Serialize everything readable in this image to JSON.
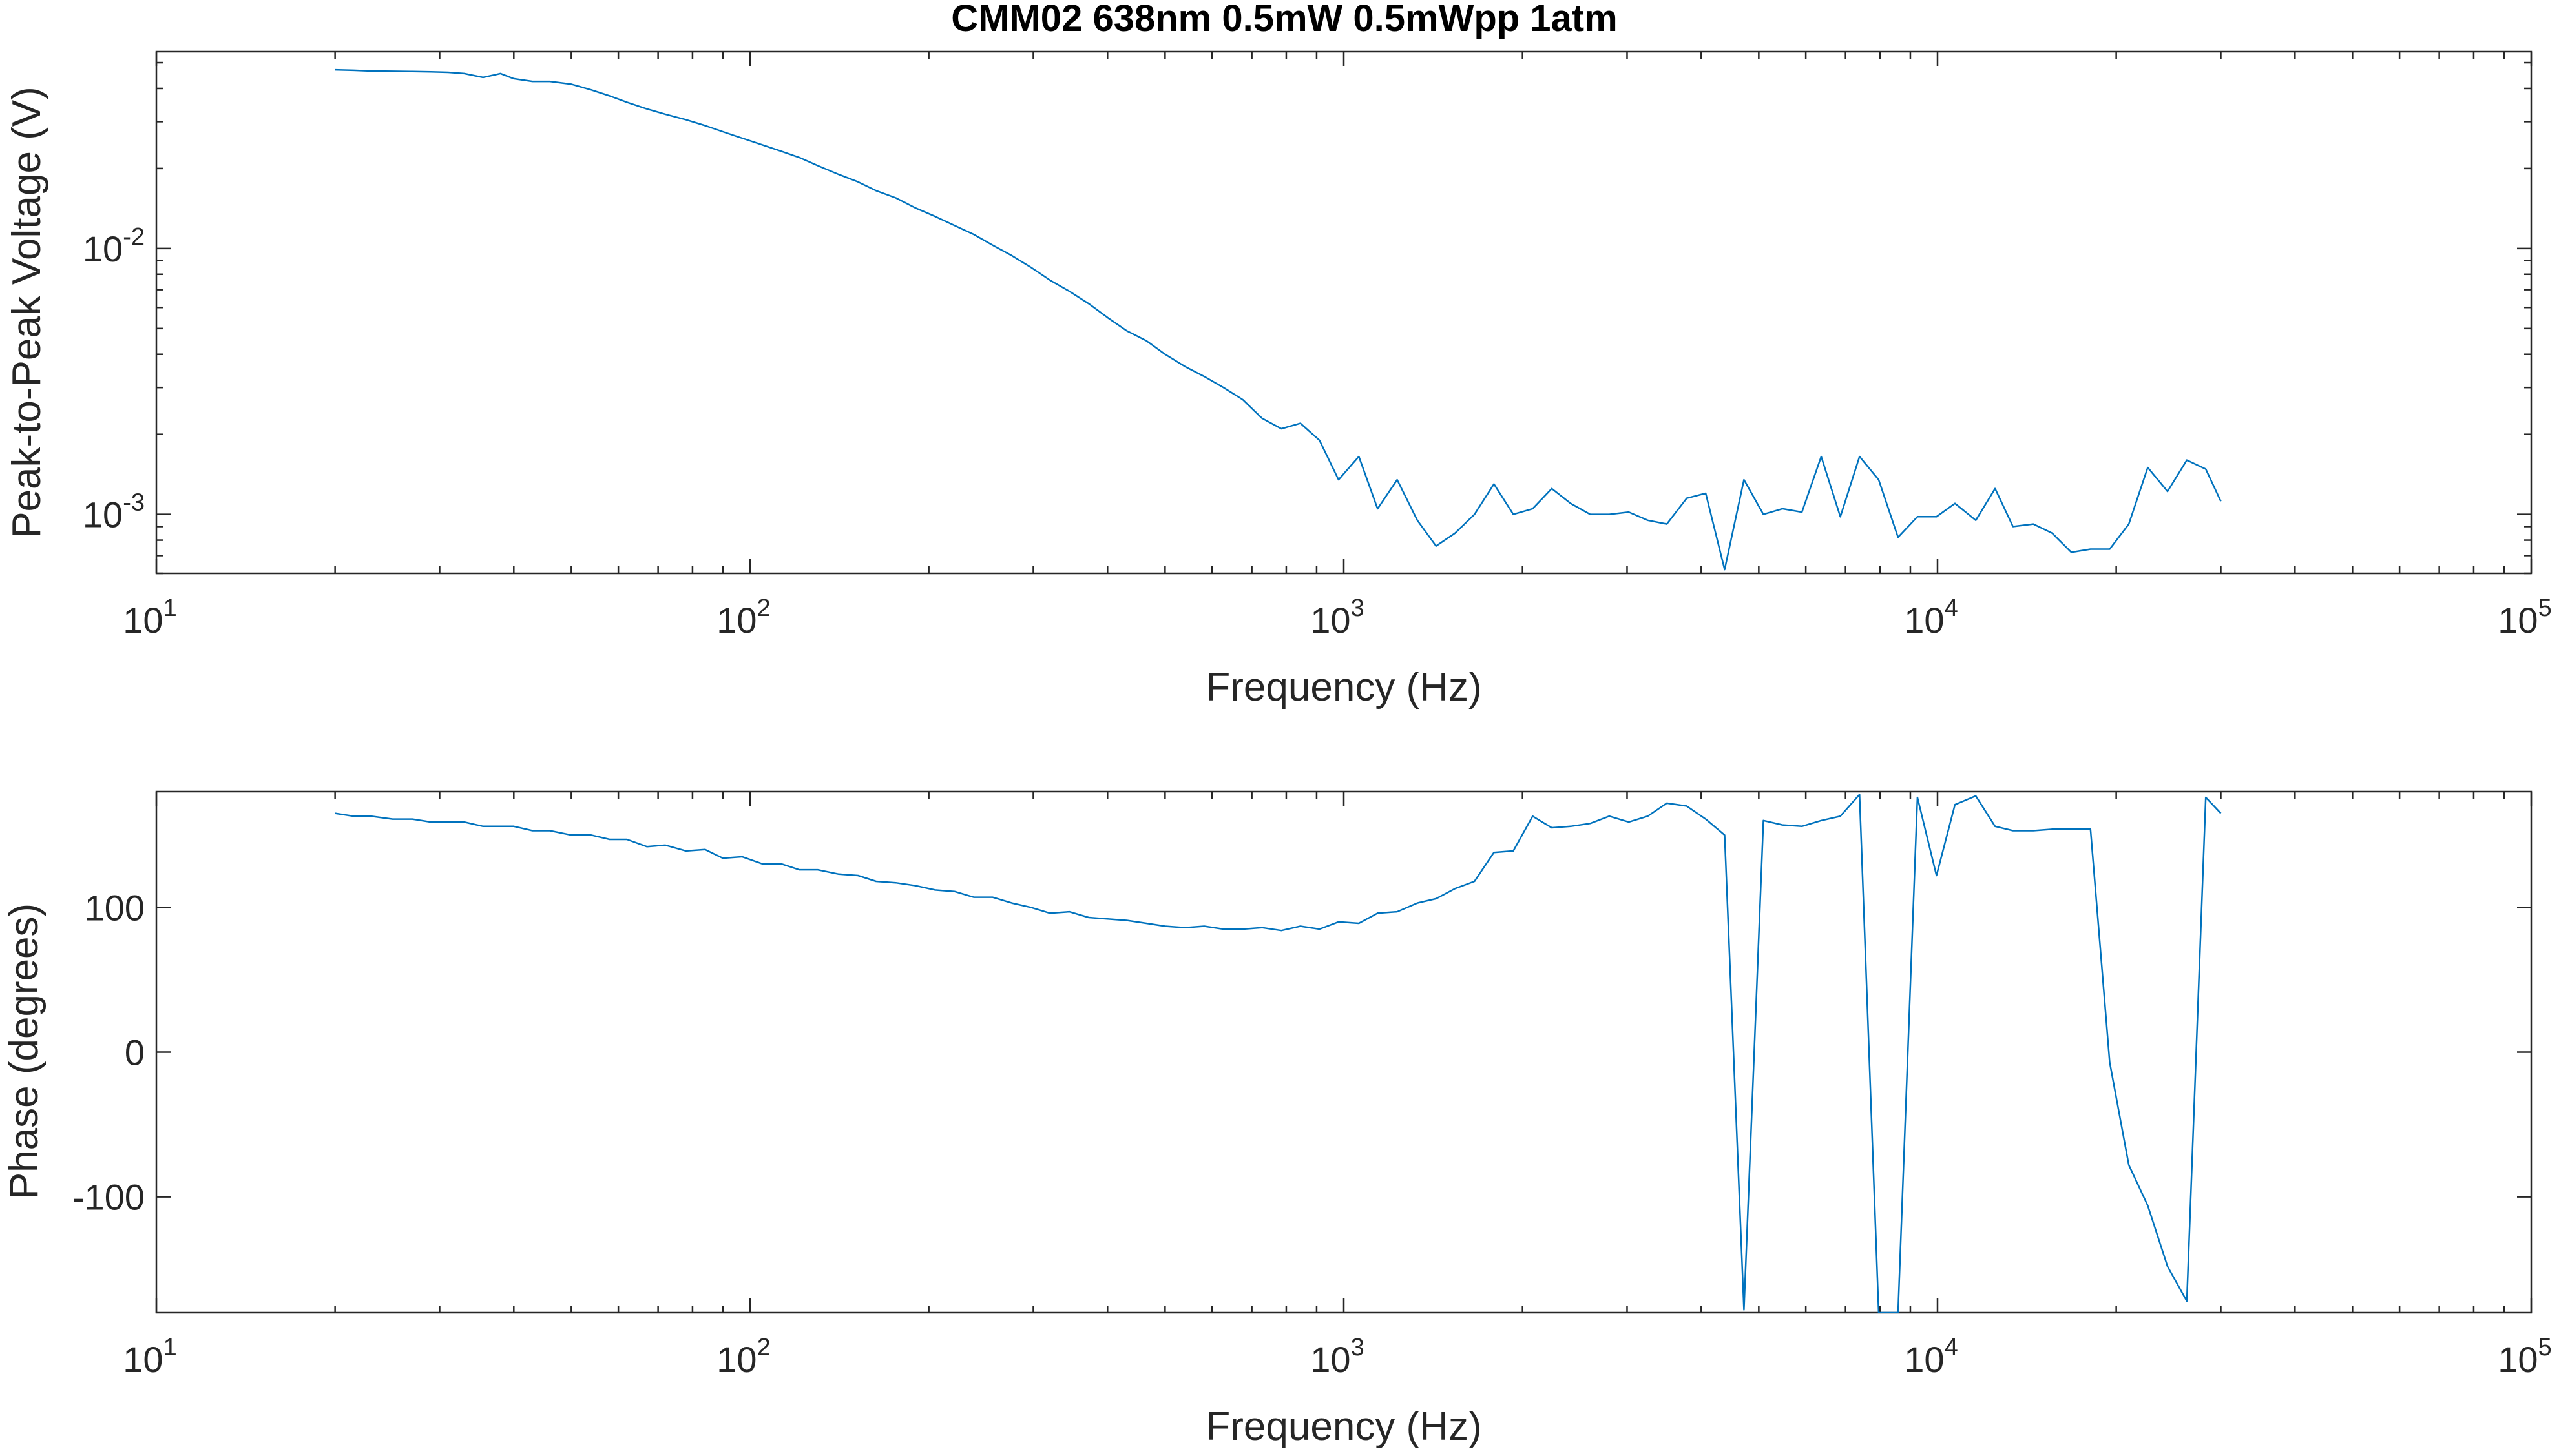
{
  "title": "CMM02 638nm 0.5mW 0.5mWpp 1atm",
  "colors": {
    "series": "#0072BD",
    "axes": "#262626"
  },
  "chart_data": [
    {
      "type": "line",
      "xlabel": "Frequency (Hz)",
      "ylabel": "Peak-to-Peak Voltage (V)",
      "xscale": "log",
      "yscale": "log",
      "xlim": [
        10,
        100000
      ],
      "ylim": [
        0.0006,
        0.055
      ],
      "xticks": [
        {
          "value": 10,
          "base": "10",
          "exp": "1"
        },
        {
          "value": 100,
          "base": "10",
          "exp": "2"
        },
        {
          "value": 1000,
          "base": "10",
          "exp": "3"
        },
        {
          "value": 10000,
          "base": "10",
          "exp": "4"
        },
        {
          "value": 100000,
          "base": "10",
          "exp": "5"
        }
      ],
      "yticks": [
        {
          "value": 0.001,
          "base": "10",
          "exp": "-3"
        },
        {
          "value": 0.01,
          "base": "10",
          "exp": "-2"
        }
      ],
      "grid": false,
      "x": [
        20,
        21.5,
        23,
        25,
        27,
        29,
        31,
        33,
        35.5,
        38,
        40,
        43,
        46,
        50,
        54,
        58,
        62,
        67,
        72,
        78,
        84,
        90,
        97,
        105,
        113,
        121,
        130,
        141,
        152,
        163,
        176,
        190,
        205,
        221,
        238,
        256,
        276,
        297,
        320,
        345,
        372,
        400,
        431,
        465,
        500,
        540,
        582,
        627,
        676,
        728,
        785,
        845,
        910,
        980,
        1060,
        1140,
        1230,
        1330,
        1430,
        1540,
        1660,
        1790,
        1930,
        2080,
        2240,
        2410,
        2600,
        2800,
        3020,
        3250,
        3500,
        3780,
        4070,
        4380,
        4720,
        5090,
        5480,
        5910,
        6370,
        6860,
        7390,
        7960,
        8580,
        9250,
        9960,
        10700,
        11600,
        12500,
        13400,
        14500,
        15600,
        16800,
        18100,
        19500,
        21000,
        22600,
        24400,
        26300,
        28300,
        30000
      ],
      "y": [
        0.047,
        0.0468,
        0.0465,
        0.0464,
        0.0463,
        0.0462,
        0.046,
        0.0455,
        0.044,
        0.0455,
        0.0435,
        0.0425,
        0.0425,
        0.0415,
        0.0395,
        0.0375,
        0.0355,
        0.0335,
        0.032,
        0.0305,
        0.029,
        0.0275,
        0.026,
        0.0245,
        0.0232,
        0.022,
        0.0205,
        0.019,
        0.0178,
        0.0165,
        0.0155,
        0.0142,
        0.0132,
        0.0122,
        0.0113,
        0.0103,
        0.0094,
        0.0085,
        0.0076,
        0.0069,
        0.0062,
        0.0055,
        0.0049,
        0.0045,
        0.004,
        0.0036,
        0.0033,
        0.003,
        0.0027,
        0.0023,
        0.0021,
        0.0022,
        0.0019,
        0.00135,
        0.00165,
        0.00105,
        0.00135,
        0.00095,
        0.00076,
        0.00085,
        0.001,
        0.0013,
        0.001,
        0.00105,
        0.00125,
        0.0011,
        0.001,
        0.001,
        0.00102,
        0.00095,
        0.00092,
        0.00115,
        0.0012,
        0.00062,
        0.00135,
        0.001,
        0.00105,
        0.00102,
        0.00165,
        0.00098,
        0.00165,
        0.00135,
        0.00082,
        0.00098,
        0.00098,
        0.0011,
        0.00095,
        0.00125,
        0.0009,
        0.00092,
        0.00085,
        0.00072,
        0.00074,
        0.00074,
        0.00092,
        0.0015,
        0.00122,
        0.0016,
        0.00148,
        0.00112
      ]
    },
    {
      "type": "line",
      "xlabel": "Frequency (Hz)",
      "ylabel": "Phase (degrees)",
      "xscale": "log",
      "yscale": "linear",
      "xlim": [
        10,
        100000
      ],
      "ylim": [
        -180,
        180
      ],
      "xticks": [
        {
          "value": 10,
          "base": "10",
          "exp": "1"
        },
        {
          "value": 100,
          "base": "10",
          "exp": "2"
        },
        {
          "value": 1000,
          "base": "10",
          "exp": "3"
        },
        {
          "value": 10000,
          "base": "10",
          "exp": "4"
        },
        {
          "value": 100000,
          "base": "10",
          "exp": "5"
        }
      ],
      "yticks": [
        {
          "value": -100,
          "base": "-100",
          "exp": ""
        },
        {
          "value": 0,
          "base": "0",
          "exp": ""
        },
        {
          "value": 100,
          "base": "100",
          "exp": ""
        }
      ],
      "grid": false,
      "x": [
        20,
        21.5,
        23,
        25,
        27,
        29,
        31,
        33,
        35.5,
        38,
        40,
        43,
        46,
        50,
        54,
        58,
        62,
        67,
        72,
        78,
        84,
        90,
        97,
        105,
        113,
        121,
        130,
        141,
        152,
        163,
        176,
        190,
        205,
        221,
        238,
        256,
        276,
        297,
        320,
        345,
        372,
        400,
        431,
        465,
        500,
        540,
        582,
        627,
        676,
        728,
        785,
        845,
        910,
        980,
        1060,
        1140,
        1230,
        1330,
        1430,
        1540,
        1660,
        1790,
        1930,
        2080,
        2240,
        2410,
        2600,
        2800,
        3020,
        3250,
        3500,
        3780,
        4070,
        4380,
        4720,
        5090,
        5480,
        5910,
        6370,
        6860,
        7390,
        7960,
        8580,
        9250,
        9960,
        10700,
        11600,
        12500,
        13400,
        14500,
        15600,
        16800,
        18100,
        19500,
        21000,
        22600,
        24400,
        26300,
        28300,
        30000
      ],
      "y": [
        165,
        163,
        163,
        161,
        161,
        159,
        159,
        159,
        156,
        156,
        156,
        153,
        153,
        150,
        150,
        147,
        147,
        142,
        143,
        139,
        140,
        134,
        135,
        130,
        130,
        126,
        126,
        123,
        122,
        118,
        117,
        115,
        112,
        111,
        107,
        107,
        103,
        100,
        96,
        97,
        93,
        92,
        91,
        89,
        87,
        86,
        87,
        85,
        85,
        86,
        84,
        87,
        85,
        90,
        89,
        96,
        97,
        103,
        106,
        113,
        118,
        138,
        139,
        163,
        155,
        156,
        158,
        163,
        159,
        163,
        172,
        170,
        161,
        150,
        -178,
        160,
        157,
        156,
        160,
        163,
        178,
        -180,
        -180,
        176,
        122,
        171,
        177,
        156,
        153,
        153,
        154,
        154,
        154,
        -7,
        -78,
        -106,
        -148,
        -172,
        176,
        165
      ]
    }
  ]
}
